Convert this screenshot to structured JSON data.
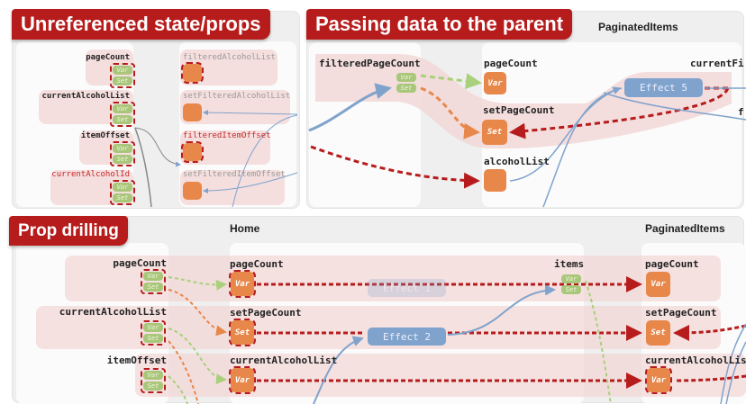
{
  "panels": {
    "unreferenced": {
      "title": "Unreferenced state/props",
      "left_nodes": [
        {
          "label": "pageCount"
        },
        {
          "label": "currentAlcoholList"
        },
        {
          "label": "itemOffset"
        },
        {
          "label": "currentAlcoholId"
        }
      ],
      "right_nodes": [
        {
          "label": "filteredAlcoholList"
        },
        {
          "label": "setFilteredAlcoholList"
        },
        {
          "label": "filteredItemOffset"
        },
        {
          "label": "setFilteredItemOffset"
        }
      ]
    },
    "passing": {
      "title": "Passing data to the parent",
      "component_header": "PaginatedItems",
      "source": "filteredPageCount",
      "nodes": [
        "pageCount",
        "setPageCount",
        "alcoholList"
      ],
      "effect": "Effect 5",
      "cut_label": "currentFi",
      "cut_label_2": "f"
    },
    "drilling": {
      "title": "Prop drilling",
      "headers": [
        "Home",
        "PaginatedItems"
      ],
      "left_nodes": [
        "pageCount",
        "currentAlcoholList",
        "itemOffset"
      ],
      "home_nodes": [
        "pageCount",
        "setPageCount",
        "currentAlcoholList"
      ],
      "items": "items",
      "effects": [
        "Effect 1",
        "Effect 2"
      ],
      "paginated_nodes": [
        "pageCount",
        "setPageCount",
        "currentAlcoholLis"
      ]
    }
  },
  "chip": {
    "var": "Var",
    "set": "Set"
  },
  "colors": {
    "badge": "#b71c1c",
    "state": "#e8874a",
    "chip": "#a9c77a",
    "effect": "#7fa3cc",
    "group": "#f5dede"
  }
}
